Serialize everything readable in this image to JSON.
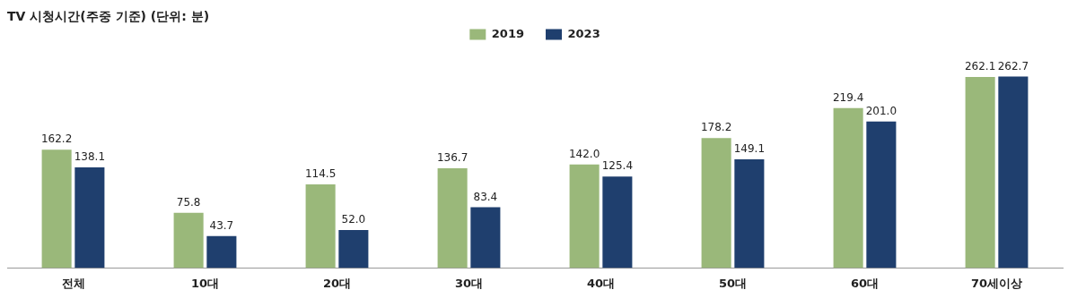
{
  "chart_data": {
    "type": "bar",
    "title": "TV 시청시간(주중 기준) (단위: 분)",
    "categories": [
      "전체",
      "10대",
      "20대",
      "30대",
      "40대",
      "50대",
      "60대",
      "70세이상"
    ],
    "series": [
      {
        "name": "2019",
        "color": "#9ab87a",
        "values": [
          162.2,
          75.8,
          114.5,
          136.7,
          142.0,
          178.2,
          219.4,
          262.1
        ],
        "value_labels": [
          "162.2",
          "75.8",
          "114.5",
          "136.7",
          "142.0",
          "178.2",
          "219.4",
          "262.1"
        ]
      },
      {
        "name": "2023",
        "color": "#1f3f6e",
        "values": [
          138.1,
          43.7,
          52.0,
          83.4,
          125.4,
          149.1,
          201.0,
          262.7
        ],
        "value_labels": [
          "138.1",
          "43.7",
          "52.0",
          "83.4",
          "125.4",
          "149.1",
          "201.0",
          "262.7"
        ]
      }
    ],
    "legend": "top",
    "grid": false
  }
}
